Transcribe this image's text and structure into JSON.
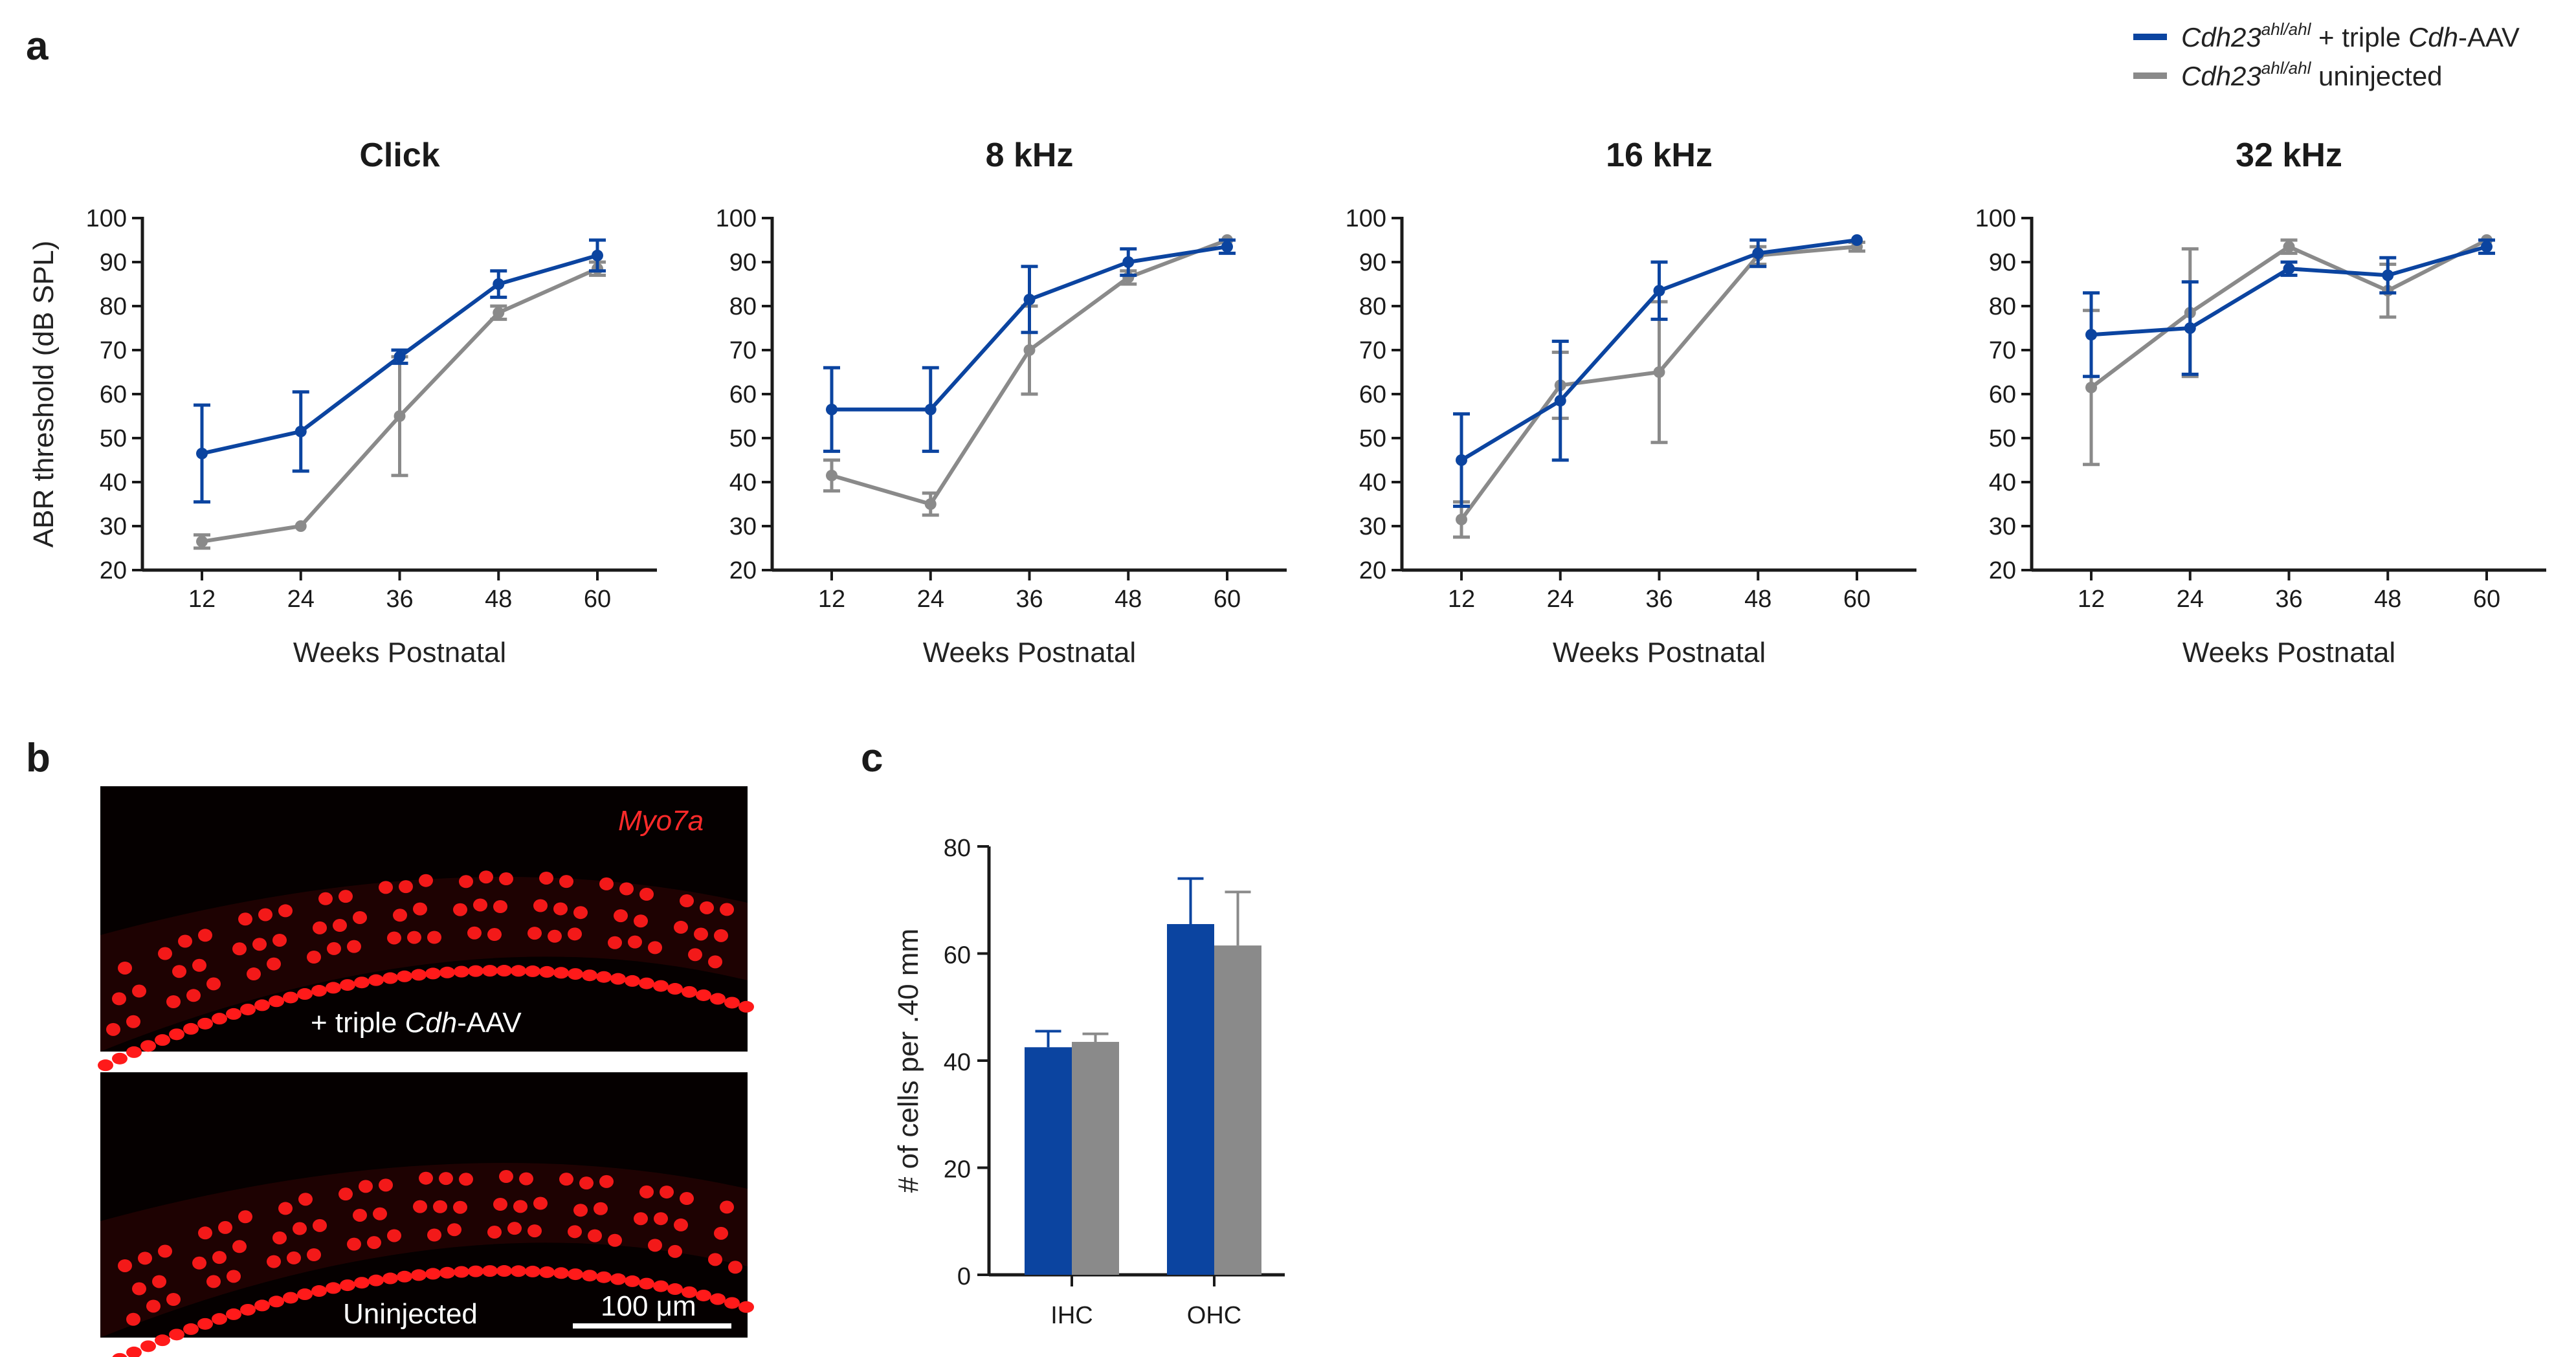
{
  "panel_labels": {
    "a": "a",
    "b": "b",
    "c": "c"
  },
  "colors": {
    "treated": "#0b44a0",
    "uninjected": "#8a8a8a",
    "axis": "#1a1a1a",
    "fluor": "#ff1a1a"
  },
  "legend": {
    "treated": {
      "gene": "Cdh23",
      "sup": "ahl/ahl",
      "rest": " + triple ",
      "italic2": "Cdh",
      "tail": "-AAV"
    },
    "uninjected": {
      "gene": "Cdh23",
      "sup": "ahl/ahl",
      "rest": " uninjected"
    }
  },
  "chart_data": [
    {
      "type": "line",
      "title": "Click",
      "xlabel": "Weeks Postnatal",
      "ylabel": "ABR threshold (dB SPL)",
      "x": [
        12,
        24,
        36,
        48,
        60
      ],
      "ylim": [
        20,
        100
      ],
      "yticks": [
        "20",
        "30",
        "40",
        "50",
        "60",
        "70",
        "80",
        "90",
        "100"
      ],
      "xticks": [
        "12",
        "24",
        "36",
        "48",
        "60"
      ],
      "series": [
        {
          "name": "Cdh23 ahl/ahl + triple Cdh-AAV",
          "values": [
            46.5,
            51.5,
            68.5,
            85,
            91.5
          ],
          "err": [
            11,
            9,
            1.5,
            3,
            3.5
          ]
        },
        {
          "name": "Cdh23 ahl/ahl uninjected",
          "values": [
            26.5,
            30,
            55,
            78.5,
            88.5
          ],
          "err": [
            1.5,
            0,
            13.5,
            1.5,
            1.5
          ]
        }
      ]
    },
    {
      "type": "line",
      "title": "8 kHz",
      "xlabel": "Weeks Postnatal",
      "ylabel": "",
      "x": [
        12,
        24,
        36,
        48,
        60
      ],
      "ylim": [
        20,
        100
      ],
      "yticks": [
        "20",
        "30",
        "40",
        "50",
        "60",
        "70",
        "80",
        "90",
        "100"
      ],
      "xticks": [
        "12",
        "24",
        "36",
        "48",
        "60"
      ],
      "series": [
        {
          "name": "Cdh23 ahl/ahl + triple Cdh-AAV",
          "values": [
            56.5,
            56.5,
            81.5,
            90,
            93.5
          ],
          "err": [
            9.5,
            9.5,
            7.5,
            3,
            1.5
          ]
        },
        {
          "name": "Cdh23 ahl/ahl uninjected",
          "values": [
            41.5,
            35,
            70,
            86.5,
            95
          ],
          "err": [
            3.5,
            2.5,
            10,
            1.5,
            0
          ]
        }
      ]
    },
    {
      "type": "line",
      "title": "16 kHz",
      "xlabel": "Weeks Postnatal",
      "ylabel": "",
      "x": [
        12,
        24,
        36,
        48,
        60
      ],
      "ylim": [
        20,
        100
      ],
      "yticks": [
        "20",
        "30",
        "40",
        "50",
        "60",
        "70",
        "80",
        "90",
        "100"
      ],
      "xticks": [
        "12",
        "24",
        "36",
        "48",
        "60"
      ],
      "series": [
        {
          "name": "Cdh23 ahl/ahl + triple Cdh-AAV",
          "values": [
            45,
            58.5,
            83.5,
            92,
            95
          ],
          "err": [
            10.5,
            13.5,
            6.5,
            3,
            0
          ]
        },
        {
          "name": "Cdh23 ahl/ahl uninjected",
          "values": [
            31.5,
            62,
            65,
            91.5,
            93.5
          ],
          "err": [
            4,
            7.5,
            16,
            2,
            1
          ]
        }
      ]
    },
    {
      "type": "line",
      "title": "32 kHz",
      "xlabel": "Weeks Postnatal",
      "ylabel": "",
      "x": [
        12,
        24,
        36,
        48,
        60
      ],
      "ylim": [
        20,
        100
      ],
      "yticks": [
        "20",
        "30",
        "40",
        "50",
        "60",
        "70",
        "80",
        "90",
        "100"
      ],
      "xticks": [
        "12",
        "24",
        "36",
        "48",
        "60"
      ],
      "series": [
        {
          "name": "Cdh23 ahl/ahl + triple Cdh-AAV",
          "values": [
            73.5,
            75,
            88.5,
            87,
            93.5
          ],
          "err": [
            9.5,
            10.5,
            1.5,
            4,
            1.5
          ]
        },
        {
          "name": "Cdh23 ahl/ahl uninjected",
          "values": [
            61.5,
            78.5,
            93.5,
            83.5,
            95
          ],
          "err": [
            17.5,
            14.5,
            1.5,
            6,
            0
          ]
        }
      ]
    },
    {
      "type": "bar",
      "title": "",
      "xlabel": "",
      "ylabel": "# of cells per .40 mm",
      "categories": [
        "IHC",
        "OHC"
      ],
      "ylim": [
        0,
        80
      ],
      "yticks": [
        "0",
        "20",
        "40",
        "60",
        "80"
      ],
      "series": [
        {
          "name": "Cdh23 ahl/ahl + triple Cdh-AAV",
          "values": [
            42.5,
            65.5
          ],
          "err": [
            3,
            8.5
          ]
        },
        {
          "name": "Cdh23 ahl/ahl uninjected",
          "values": [
            43.5,
            61.5
          ],
          "err": [
            1.5,
            10
          ]
        }
      ]
    }
  ],
  "images": {
    "marker": "Myo7a",
    "top_label_plain": "+ triple ",
    "top_label_italic": "Cdh",
    "top_label_tail": "-AAV",
    "bottom_label": "Uninjected",
    "scale_bar": "100 μm"
  }
}
